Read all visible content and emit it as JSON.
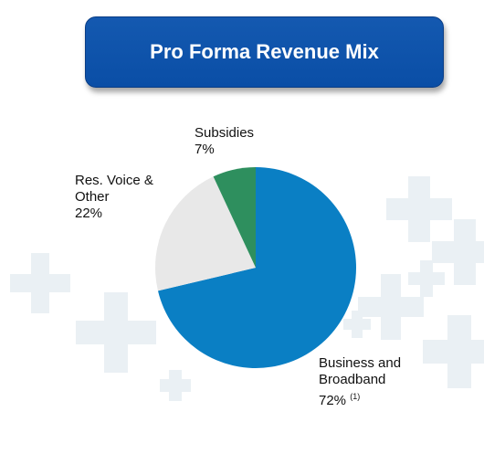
{
  "title": "Pro Forma Revenue Mix",
  "chart_data": {
    "type": "pie",
    "title": "Pro Forma Revenue Mix",
    "slices": [
      {
        "name": "Business and Broadband",
        "value": 72,
        "label_value": "72%",
        "footnote": "(1)",
        "color": "#0a7fc4"
      },
      {
        "name": "Res. Voice & Other",
        "value": 22,
        "label_value": "22%",
        "color": "#e8e8e8"
      },
      {
        "name": "Subsidies",
        "value": 7,
        "label_value": "7%",
        "color": "#2e8f5e"
      }
    ],
    "start": "12 o'clock",
    "direction": "clockwise",
    "legend": "none"
  }
}
